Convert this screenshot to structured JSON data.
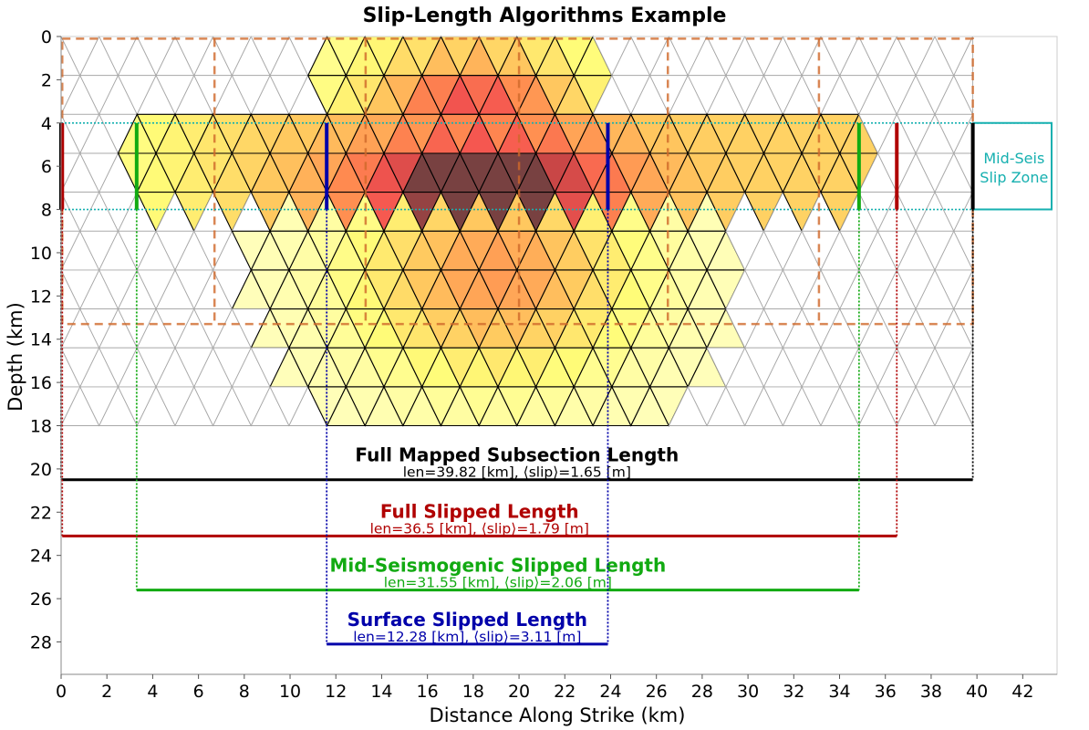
{
  "chart_data": {
    "type": "heatmap",
    "title": "Slip-Length Algorithms Example",
    "xlabel": "Distance Along Strike (km)",
    "ylabel": "Depth (km)",
    "xlim": [
      0,
      43.5
    ],
    "ylim": [
      29.5,
      0
    ],
    "xticks": [
      "0",
      "2",
      "4",
      "6",
      "8",
      "10",
      "12",
      "14",
      "16",
      "18",
      "20",
      "22",
      "24",
      "26",
      "28",
      "30",
      "32",
      "34",
      "36",
      "38",
      "40",
      "42"
    ],
    "yticks": [
      "0",
      "2",
      "4",
      "6",
      "8",
      "10",
      "12",
      "14",
      "16",
      "18",
      "20",
      "22",
      "24",
      "26",
      "28"
    ],
    "mesh": {
      "x_start": 0,
      "x_end": 39.82,
      "row_height": 1.8,
      "bottom_depth": 18,
      "cols": 24
    },
    "slip_patches": {
      "shallow": {
        "x_range": [
          11.6,
          23.9
        ],
        "depth_range": [
          0,
          4
        ],
        "peak_x": 18,
        "peak_depth": 4
      },
      "mid": {
        "x_range": [
          0,
          35
        ],
        "depth_range": [
          4,
          8
        ],
        "peak_x": 18.5,
        "peak_depth": 7
      },
      "deep": {
        "depth_range": [
          8,
          18
        ],
        "peak_x": 19,
        "peak_depth": 11
      }
    },
    "subsection_dashes": {
      "depth_range": [
        0.1,
        13.3
      ],
      "dividers": [
        6.7,
        13.3,
        20,
        26.5,
        33.1
      ],
      "x_range": [
        0.05,
        39.82
      ],
      "color": "#d0692a"
    },
    "mid_seismogenic_zone": {
      "depth_range": [
        4,
        8
      ],
      "label_line1": "Mid-Seis",
      "label_line2": "Slip Zone",
      "color": "#16b0b0"
    },
    "lengths": [
      {
        "key": "full_mapped",
        "title": "Full Mapped Subsection Length",
        "stats": "len=39.82 [km], ⟨slip⟩=1.65 [m]",
        "x_start": 0,
        "x_end": 39.82,
        "line_depth": 20.5,
        "color": "#000000"
      },
      {
        "key": "full_slipped",
        "title": "Full Slipped Length",
        "stats": "len=36.5 [km], ⟨slip⟩=1.79 [m]",
        "x_start": 0.05,
        "x_end": 36.5,
        "line_depth": 23.1,
        "color": "#b00000"
      },
      {
        "key": "mid_seis",
        "title": "Mid-Seismogenic Slipped Length",
        "stats": "len=31.55 [km], ⟨slip⟩=2.06 [m]",
        "x_start": 3.3,
        "x_end": 34.85,
        "line_depth": 25.6,
        "color": "#12aa12"
      },
      {
        "key": "surface",
        "title": "Surface Slipped Length",
        "stats": "len=12.28 [km], ⟨slip⟩=3.11 [m]",
        "x_start": 11.6,
        "x_end": 23.88,
        "line_depth": 28.1,
        "color": "#0000aa"
      }
    ]
  }
}
